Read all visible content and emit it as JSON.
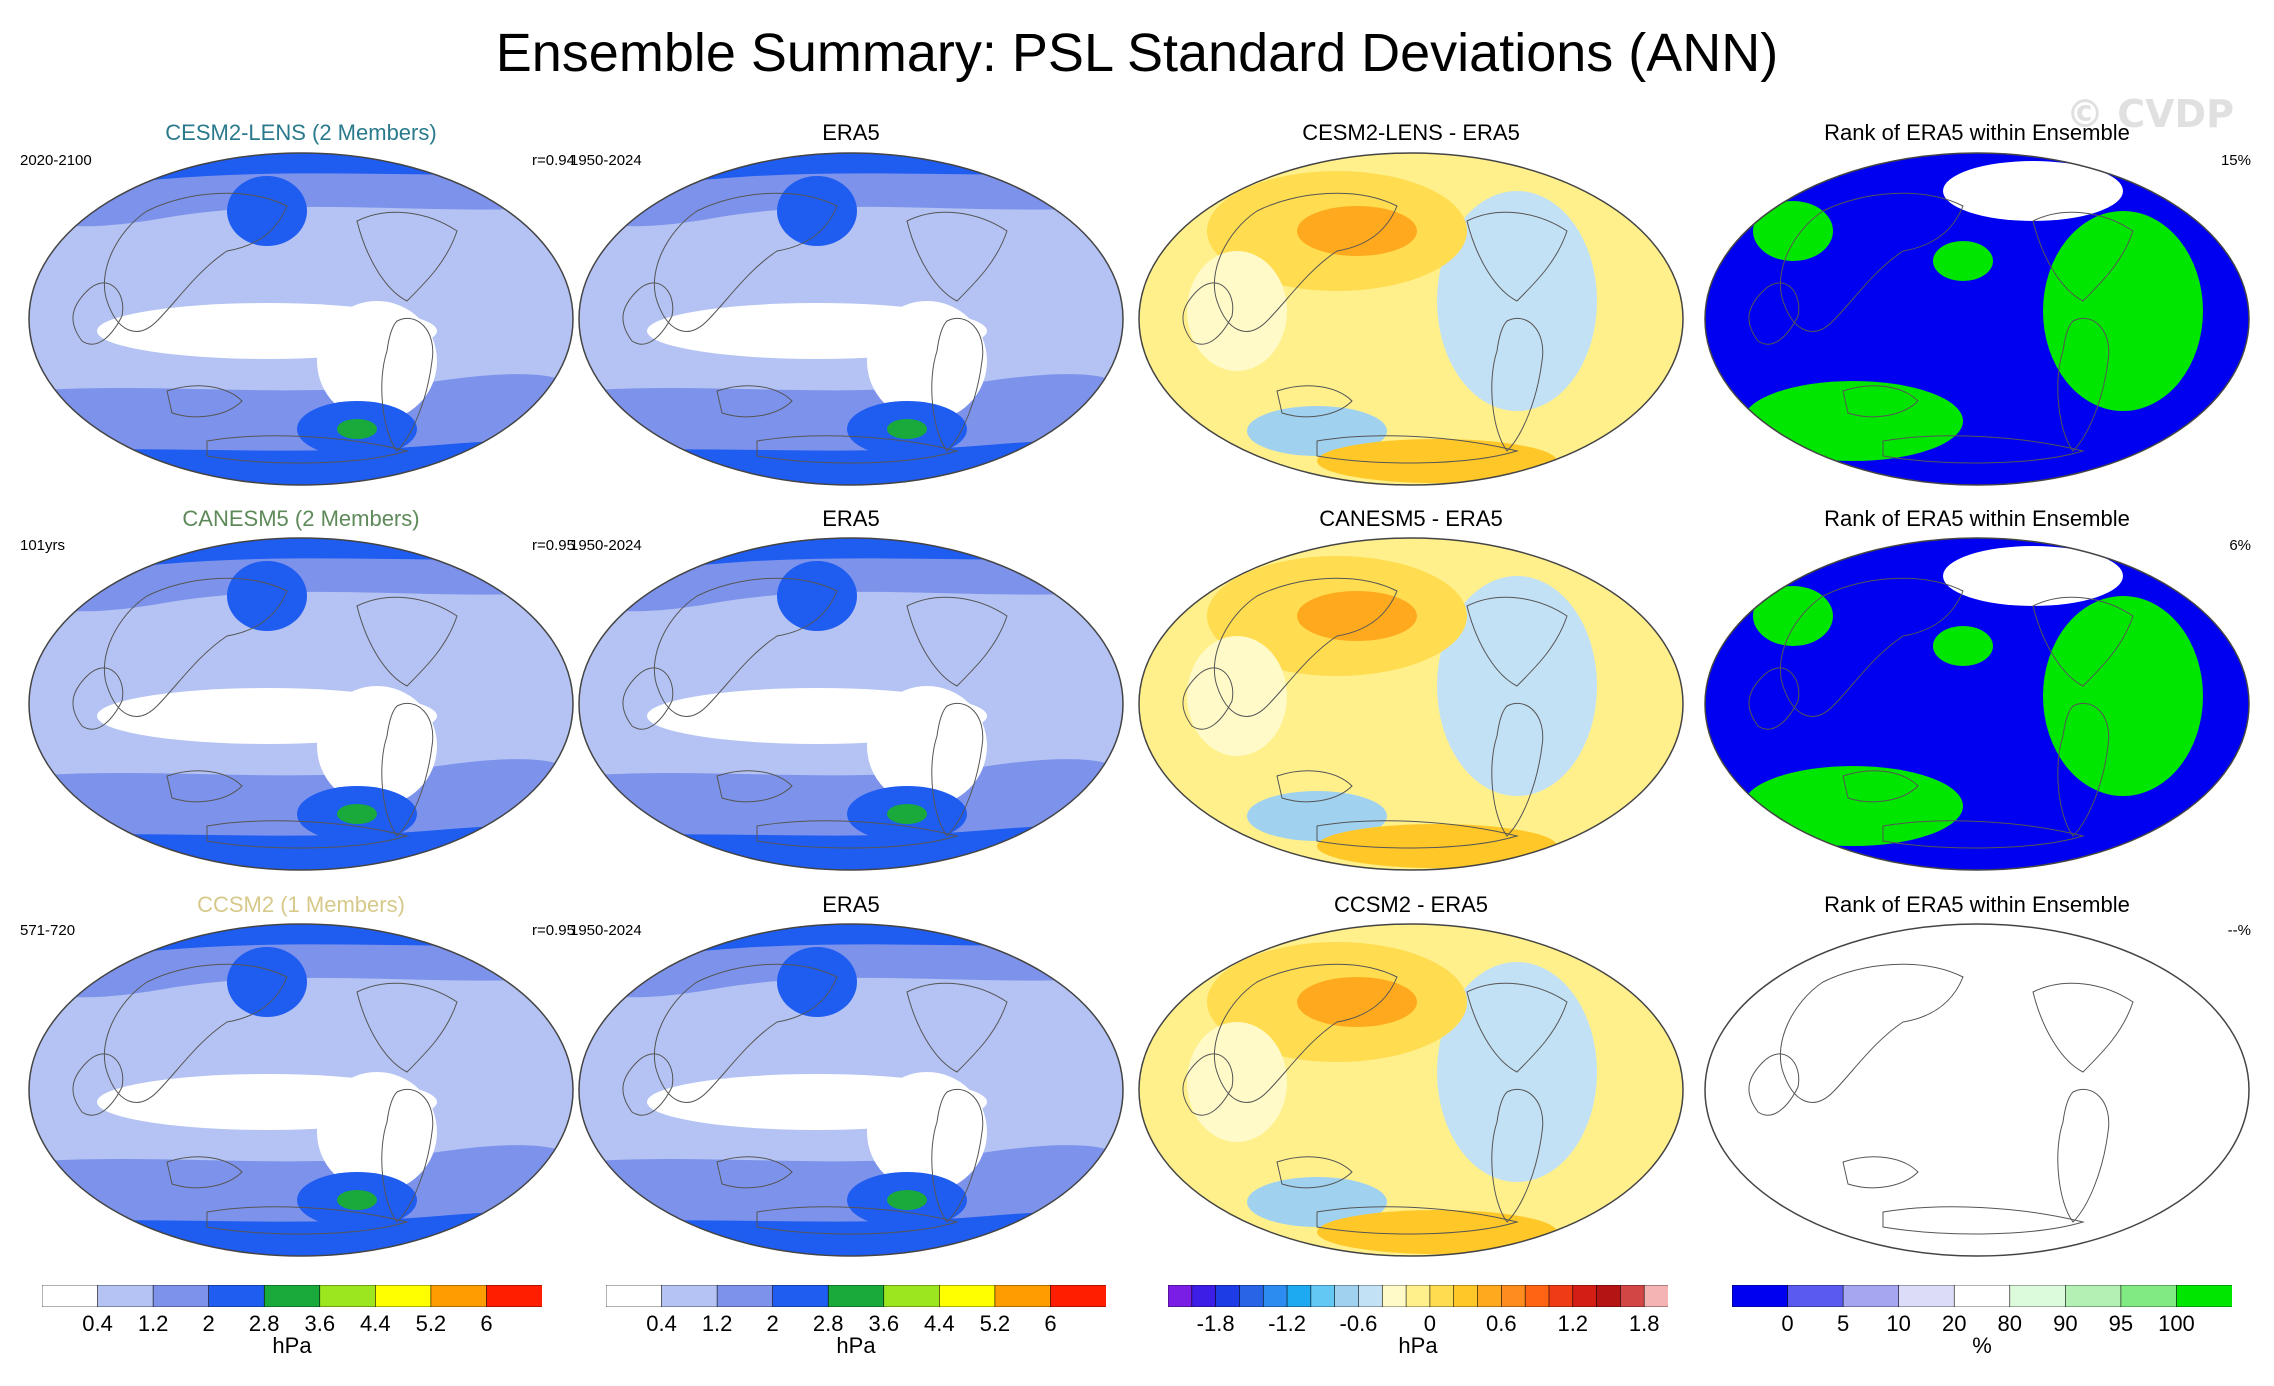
{
  "title": "Ensemble Summary: PSL Standard Deviations (ANN)",
  "watermark": "© CVDP",
  "rows": [
    {
      "model_title": "CESM2-LENS (2 Members)",
      "model_color": "#2a7a8c",
      "model_period": "2020-2100",
      "corr": "r=0.94",
      "obs_title": "ERA5",
      "obs_period": "1950-2024",
      "diff_title": "CESM2-LENS - ERA5",
      "rank_title": "Rank of ERA5 within Ensemble",
      "rank_pct": "15%",
      "rank_filled": true
    },
    {
      "model_title": "CANESM5 (2 Members)",
      "model_color": "#5e8a5a",
      "model_period": "101yrs",
      "corr": "r=0.95",
      "obs_title": "ERA5",
      "obs_period": "1950-2024",
      "diff_title": "CANESM5 - ERA5",
      "rank_title": "Rank of ERA5 within Ensemble",
      "rank_pct": "6%",
      "rank_filled": true
    },
    {
      "model_title": "CCSM2 (1 Members)",
      "model_color": "#d6c98a",
      "model_period": "571-720",
      "corr": "r=0.95",
      "obs_title": "ERA5",
      "obs_period": "1950-2024",
      "diff_title": "CCSM2 - ERA5",
      "rank_title": "Rank of ERA5 within Ensemble",
      "rank_pct": "--%",
      "rank_filled": false
    }
  ],
  "colorbars": [
    {
      "unit": "hPa",
      "colors": [
        "#ffffff",
        "#b4c3f3",
        "#7d93eb",
        "#1f5cf0",
        "#1aaa3c",
        "#9be61e",
        "#ffff00",
        "#ff9c00",
        "#ff1e00"
      ],
      "ticks": [
        "0.4",
        "1.2",
        "2",
        "2.8",
        "3.6",
        "4.4",
        "5.2",
        "6"
      ]
    },
    {
      "unit": "hPa",
      "colors": [
        "#ffffff",
        "#b4c3f3",
        "#7d93eb",
        "#1f5cf0",
        "#1aaa3c",
        "#9be61e",
        "#ffff00",
        "#ff9c00",
        "#ff1e00"
      ],
      "ticks": [
        "0.4",
        "1.2",
        "2",
        "2.8",
        "3.6",
        "4.4",
        "5.2",
        "6"
      ]
    },
    {
      "unit": "hPa",
      "colors": [
        "#7a1ee6",
        "#3c1ee6",
        "#1e3ce6",
        "#2864e6",
        "#2d8cf0",
        "#1eaaf0",
        "#64c8f5",
        "#a0d2f0",
        "#c3e1f5",
        "#fffac8",
        "#fff08c",
        "#ffdc50",
        "#ffc828",
        "#ffaa1e",
        "#ff8c1e",
        "#ff6414",
        "#f03c14",
        "#d21e14",
        "#b41414",
        "#d24646",
        "#f5b4b4"
      ],
      "ticks": [
        "-1.8",
        "-1.2",
        "-0.6",
        "0",
        "0.6",
        "1.2",
        "1.8"
      ]
    },
    {
      "unit": "%",
      "colors": [
        "#0000f0",
        "#5a5af0",
        "#a5a5f0",
        "#dcdcf8",
        "#ffffff",
        "#dcfadc",
        "#b4f0b4",
        "#82ea82",
        "#00e600"
      ],
      "ticks": [
        "0",
        "5",
        "10",
        "20",
        "80",
        "90",
        "95",
        "100"
      ]
    }
  ]
}
